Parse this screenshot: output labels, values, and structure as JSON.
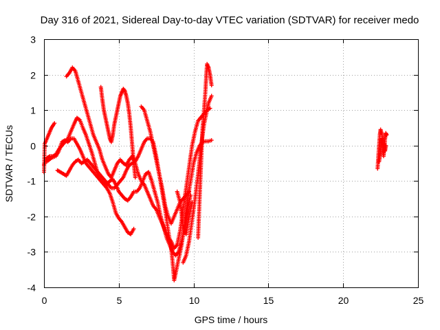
{
  "chart_data": {
    "type": "scatter",
    "title": "Day 316 of 2021, Sidereal Day-to-day VTEC variation (SDTVAR) for receiver medo",
    "xlabel": "GPS time / hours",
    "ylabel": "SDTVAR / TECUs",
    "xlim": [
      0,
      25
    ],
    "ylim": [
      -4,
      3
    ],
    "xticks": [
      0,
      5,
      10,
      15,
      20,
      25
    ],
    "yticks": [
      -4,
      -3,
      -2,
      -1,
      0,
      1,
      2,
      3
    ],
    "grid": true,
    "marker": "plus",
    "color": "#ff0000",
    "series": [
      {
        "points": [
          [
            0.0,
            -0.75
          ],
          [
            0.05,
            0.05
          ],
          [
            0.2,
            0.2
          ],
          [
            0.35,
            0.35
          ],
          [
            0.5,
            0.5
          ],
          [
            0.7,
            0.63
          ]
        ]
      },
      {
        "points": [
          [
            0.0,
            -0.55
          ],
          [
            0.2,
            -0.35
          ],
          [
            0.4,
            -0.3
          ],
          [
            0.6,
            -0.3
          ],
          [
            0.8,
            -0.25
          ],
          [
            1.0,
            -0.1
          ],
          [
            1.2,
            0.0
          ],
          [
            1.4,
            0.1
          ],
          [
            1.6,
            0.2
          ],
          [
            1.8,
            0.4
          ],
          [
            2.0,
            0.6
          ],
          [
            2.2,
            0.78
          ],
          [
            2.4,
            0.72
          ],
          [
            2.6,
            0.5
          ],
          [
            2.8,
            0.3
          ],
          [
            3.0,
            0.05
          ],
          [
            3.2,
            -0.2
          ],
          [
            3.4,
            -0.5
          ],
          [
            3.6,
            -0.8
          ],
          [
            3.8,
            -1.0
          ],
          [
            4.0,
            -1.1
          ],
          [
            4.2,
            -1.2
          ],
          [
            4.4,
            -1.35
          ],
          [
            4.6,
            -1.6
          ],
          [
            4.8,
            -1.9
          ],
          [
            5.0,
            -2.05
          ],
          [
            5.2,
            -2.15
          ],
          [
            5.4,
            -2.3
          ],
          [
            5.6,
            -2.45
          ],
          [
            5.8,
            -2.5
          ],
          [
            6.0,
            -2.35
          ]
        ]
      },
      {
        "points": [
          [
            0.2,
            -0.45
          ],
          [
            0.5,
            -0.35
          ],
          [
            0.8,
            -0.3
          ],
          [
            1.0,
            -0.15
          ],
          [
            1.2,
            0.1
          ],
          [
            1.4,
            0.15
          ],
          [
            1.6,
            0.1
          ],
          [
            1.8,
            0.2
          ],
          [
            2.0,
            0.2
          ],
          [
            2.2,
            0.05
          ],
          [
            2.4,
            -0.1
          ],
          [
            2.6,
            -0.3
          ],
          [
            2.8,
            -0.5
          ],
          [
            3.0,
            -0.6
          ],
          [
            3.2,
            -0.7
          ],
          [
            3.4,
            -0.8
          ],
          [
            3.6,
            -0.9
          ],
          [
            3.8,
            -1.0
          ],
          [
            4.0,
            -1.05
          ],
          [
            4.2,
            -1.1
          ],
          [
            4.4,
            -1.0
          ],
          [
            4.6,
            -0.95
          ],
          [
            4.8,
            -1.1
          ],
          [
            5.0,
            -1.3
          ],
          [
            5.2,
            -1.4
          ],
          [
            5.4,
            -1.5
          ],
          [
            5.6,
            -1.55
          ],
          [
            5.8,
            -1.45
          ],
          [
            6.0,
            -1.3
          ],
          [
            6.2,
            -1.3
          ],
          [
            6.4,
            -1.2
          ],
          [
            6.6,
            -1.0
          ],
          [
            6.8,
            -0.8
          ],
          [
            7.0,
            -0.75
          ],
          [
            7.2,
            -1.0
          ],
          [
            7.4,
            -1.3
          ],
          [
            7.6,
            -1.6
          ],
          [
            7.8,
            -2.0
          ],
          [
            8.0,
            -2.3
          ],
          [
            8.2,
            -2.6
          ],
          [
            8.4,
            -2.8
          ],
          [
            8.6,
            -3.0
          ],
          [
            8.8,
            -3.1
          ],
          [
            9.0,
            -3.0
          ],
          [
            9.2,
            -2.7
          ],
          [
            9.4,
            -2.3
          ],
          [
            9.6,
            -1.8
          ],
          [
            9.8,
            -1.4
          ]
        ]
      },
      {
        "points": [
          [
            0.9,
            -0.7
          ],
          [
            1.1,
            -0.75
          ],
          [
            1.3,
            -0.8
          ],
          [
            1.5,
            -0.85
          ],
          [
            1.7,
            -0.7
          ],
          [
            1.9,
            -0.55
          ],
          [
            2.1,
            -0.45
          ],
          [
            2.3,
            -0.4
          ],
          [
            2.5,
            -0.5
          ],
          [
            2.7,
            -0.45
          ],
          [
            2.9,
            -0.4
          ],
          [
            3.1,
            -0.5
          ],
          [
            3.3,
            -0.6
          ],
          [
            3.5,
            -0.7
          ],
          [
            3.7,
            -0.8
          ],
          [
            3.9,
            -0.9
          ],
          [
            4.1,
            -1.0
          ],
          [
            4.3,
            -1.1
          ],
          [
            4.5,
            -1.2
          ],
          [
            4.7,
            -1.2
          ],
          [
            4.9,
            -1.1
          ],
          [
            5.1,
            -1.0
          ],
          [
            5.3,
            -0.9
          ],
          [
            5.5,
            -0.7
          ],
          [
            5.7,
            -0.55
          ],
          [
            5.9,
            -0.5
          ],
          [
            6.1,
            -0.45
          ],
          [
            6.3,
            -0.3
          ],
          [
            6.5,
            -0.1
          ],
          [
            6.7,
            0.1
          ],
          [
            6.9,
            0.2
          ],
          [
            7.1,
            0.2
          ],
          [
            7.3,
            0.1
          ],
          [
            7.5,
            -0.3
          ],
          [
            7.7,
            -0.8
          ],
          [
            7.9,
            -1.3
          ],
          [
            8.1,
            -1.8
          ],
          [
            8.3,
            -2.4
          ],
          [
            8.5,
            -2.9
          ],
          [
            8.6,
            -3.3
          ],
          [
            8.7,
            -3.8
          ],
          [
            8.8,
            -3.6
          ],
          [
            9.0,
            -3.2
          ],
          [
            9.2,
            -2.8
          ],
          [
            9.4,
            -2.2
          ],
          [
            9.6,
            -1.5
          ],
          [
            9.8,
            -1.0
          ],
          [
            10.0,
            -0.5
          ],
          [
            10.2,
            -0.2
          ],
          [
            10.4,
            0.0
          ],
          [
            10.6,
            0.1
          ],
          [
            10.8,
            0.12
          ],
          [
            11.0,
            0.12
          ],
          [
            11.2,
            0.15
          ]
        ]
      },
      {
        "points": [
          [
            1.5,
            1.95
          ],
          [
            1.7,
            2.05
          ],
          [
            1.9,
            2.2
          ],
          [
            2.1,
            2.1
          ],
          [
            2.3,
            1.8
          ],
          [
            2.5,
            1.5
          ],
          [
            2.7,
            1.2
          ],
          [
            2.9,
            0.9
          ],
          [
            3.1,
            0.6
          ],
          [
            3.3,
            0.3
          ],
          [
            3.5,
            0.1
          ],
          [
            3.7,
            -0.1
          ],
          [
            3.9,
            -0.4
          ],
          [
            4.1,
            -0.6
          ],
          [
            4.3,
            -0.8
          ],
          [
            4.5,
            -0.9
          ],
          [
            4.7,
            -0.7
          ],
          [
            4.9,
            -0.5
          ],
          [
            5.1,
            -0.4
          ],
          [
            5.3,
            -0.5
          ],
          [
            5.5,
            -0.55
          ],
          [
            5.7,
            -0.4
          ],
          [
            5.9,
            -0.3
          ],
          [
            6.1,
            -0.5
          ],
          [
            6.3,
            -0.8
          ],
          [
            6.5,
            -1.0
          ],
          [
            6.7,
            -1.1
          ],
          [
            6.9,
            -1.3
          ],
          [
            7.1,
            -1.5
          ],
          [
            7.3,
            -1.7
          ],
          [
            7.5,
            -1.8
          ],
          [
            7.7,
            -2.0
          ],
          [
            7.9,
            -2.2
          ],
          [
            8.1,
            -2.4
          ],
          [
            8.3,
            -2.6
          ],
          [
            8.5,
            -2.7
          ],
          [
            8.7,
            -2.9
          ],
          [
            8.9,
            -2.8
          ],
          [
            9.1,
            -2.4
          ],
          [
            9.3,
            -1.8
          ],
          [
            9.5,
            -1.2
          ],
          [
            9.7,
            -0.6
          ],
          [
            9.9,
            0.0
          ],
          [
            10.1,
            0.4
          ],
          [
            10.3,
            0.7
          ],
          [
            10.5,
            0.8
          ],
          [
            10.7,
            0.9
          ],
          [
            10.9,
            1.0
          ],
          [
            11.1,
            1.05
          ]
        ]
      },
      {
        "points": [
          [
            3.8,
            1.65
          ],
          [
            3.9,
            1.3
          ],
          [
            4.0,
            1.0
          ],
          [
            4.1,
            0.8
          ],
          [
            4.2,
            0.6
          ],
          [
            4.3,
            0.4
          ],
          [
            4.4,
            0.2
          ],
          [
            4.5,
            0.1
          ],
          [
            4.6,
            0.3
          ],
          [
            4.7,
            0.6
          ],
          [
            4.8,
            0.8
          ],
          [
            4.9,
            1.0
          ],
          [
            5.0,
            1.2
          ],
          [
            5.1,
            1.4
          ],
          [
            5.2,
            1.5
          ],
          [
            5.3,
            1.6
          ],
          [
            5.4,
            1.55
          ],
          [
            5.5,
            1.4
          ],
          [
            5.6,
            1.2
          ],
          [
            5.7,
            0.9
          ],
          [
            5.8,
            0.5
          ],
          [
            5.9,
            0.0
          ],
          [
            6.0,
            -0.5
          ],
          [
            6.1,
            -0.9
          ]
        ]
      },
      {
        "points": [
          [
            6.5,
            1.1
          ],
          [
            6.7,
            1.0
          ],
          [
            6.9,
            0.7
          ],
          [
            7.1,
            0.4
          ],
          [
            7.3,
            0.0
          ],
          [
            7.5,
            -0.4
          ],
          [
            7.7,
            -0.8
          ],
          [
            7.9,
            -1.2
          ],
          [
            8.1,
            -1.7
          ],
          [
            8.3,
            -2.0
          ],
          [
            8.5,
            -2.2
          ],
          [
            8.7,
            -2.0
          ],
          [
            8.9,
            -1.8
          ],
          [
            9.1,
            -1.6
          ],
          [
            9.3,
            -1.5
          ],
          [
            9.5,
            -1.4
          ],
          [
            9.7,
            -1.3
          ]
        ]
      },
      {
        "points": [
          [
            9.3,
            -3.3
          ],
          [
            9.5,
            -3.1
          ],
          [
            9.7,
            -2.7
          ],
          [
            9.9,
            -2.1
          ],
          [
            10.1,
            -1.5
          ],
          [
            10.3,
            -0.8
          ],
          [
            10.5,
            0.0
          ],
          [
            10.7,
            0.6
          ],
          [
            10.9,
            1.0
          ],
          [
            11.0,
            1.2
          ],
          [
            11.2,
            1.4
          ]
        ]
      },
      {
        "points": [
          [
            10.3,
            -2.6
          ],
          [
            10.4,
            -1.5
          ],
          [
            10.5,
            -0.5
          ],
          [
            10.6,
            0.5
          ],
          [
            10.7,
            1.0
          ],
          [
            10.8,
            1.6
          ],
          [
            10.85,
            2.0
          ],
          [
            10.9,
            2.3
          ],
          [
            11.0,
            2.2
          ],
          [
            11.1,
            2.0
          ],
          [
            11.2,
            1.7
          ]
        ]
      },
      {
        "points": [
          [
            8.9,
            -1.3
          ],
          [
            9.1,
            -1.6
          ],
          [
            9.3,
            -2.3
          ],
          [
            9.5,
            -2.5
          ],
          [
            9.7,
            -2.0
          ],
          [
            9.9,
            -1.6
          ]
        ]
      },
      {
        "points": [
          [
            22.3,
            -0.65
          ],
          [
            22.35,
            -0.3
          ],
          [
            22.4,
            0.0
          ],
          [
            22.45,
            0.3
          ],
          [
            22.5,
            0.45
          ],
          [
            22.6,
            0.3
          ],
          [
            22.65,
            0.0
          ],
          [
            22.7,
            -0.2
          ],
          [
            22.75,
            -0.1
          ],
          [
            22.8,
            0.2
          ],
          [
            22.85,
            0.35
          ],
          [
            22.9,
            0.3
          ]
        ]
      },
      {
        "points": [
          [
            22.4,
            -0.45
          ],
          [
            22.5,
            -0.2
          ],
          [
            22.55,
            0.1
          ],
          [
            22.6,
            0.2
          ],
          [
            22.7,
            -0.3
          ],
          [
            22.75,
            0.0
          ],
          [
            22.8,
            -0.15
          ],
          [
            22.85,
            0.0
          ]
        ]
      }
    ]
  }
}
